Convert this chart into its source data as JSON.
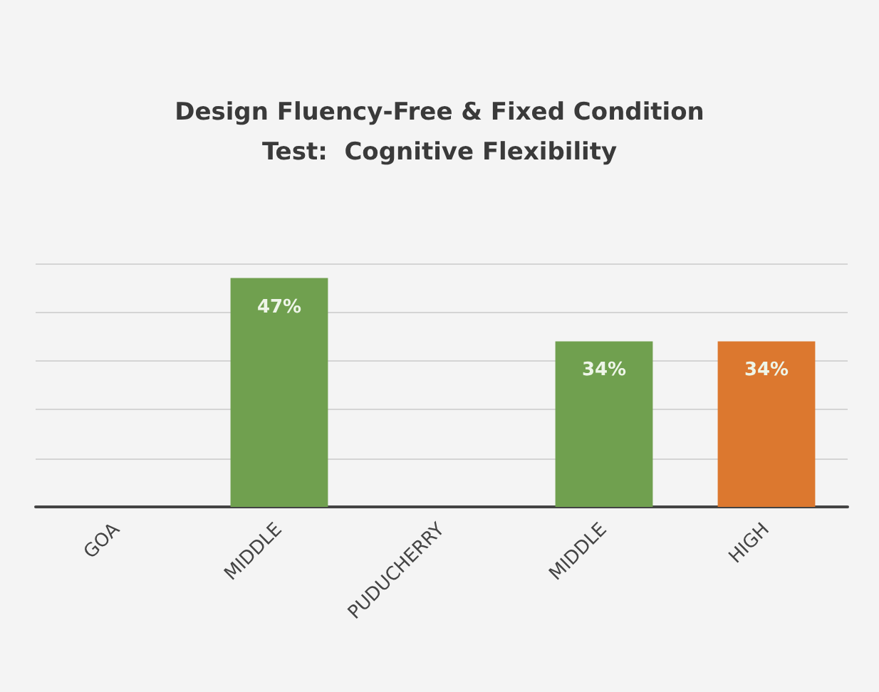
{
  "chart_data": {
    "type": "bar",
    "title": "Design Fluency-Free & Fixed Condition\nTest:  Cognitive Flexibility",
    "categories": [
      "GOA",
      "MIDDLE",
      "PUDUCHERRY",
      "MIDDLE",
      "HIGH"
    ],
    "values": [
      null,
      47,
      null,
      34,
      34
    ],
    "value_labels": [
      null,
      "47%",
      null,
      "34%",
      "34%"
    ],
    "colors": [
      "#70a04f",
      "#70a04f",
      "#70a04f",
      "#70a04f",
      "#dc782f"
    ],
    "ylim": [
      0,
      50
    ],
    "yticks": [
      {
        "value": 0,
        "label": null
      },
      {
        "value": 10,
        "label": null
      },
      {
        "value": 20,
        "label": null
      },
      {
        "value": 30,
        "label": null
      },
      {
        "value": 40,
        "label": null
      },
      {
        "value": 50,
        "label": null
      }
    ],
    "grid": "y",
    "tick_labels": "x"
  }
}
